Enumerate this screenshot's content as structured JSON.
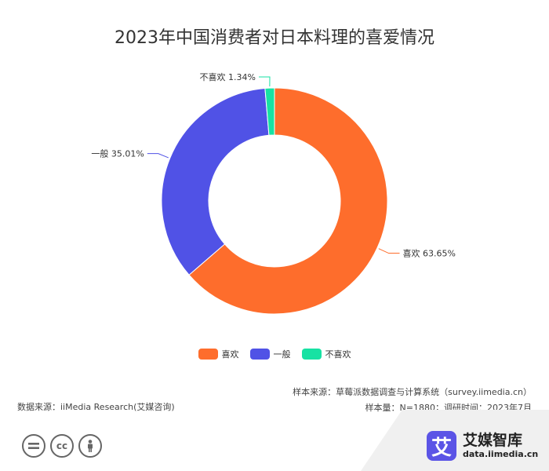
{
  "chart_data": {
    "type": "pie",
    "title": "2023年中国消费者对日本料理的喜爱情况",
    "donut": true,
    "categories": [
      "喜欢",
      "一般",
      "不喜欢"
    ],
    "values": [
      63.65,
      35.01,
      1.34
    ],
    "unit": "%",
    "colors": [
      "#fe6d2c",
      "#5052e6",
      "#17e2a3"
    ],
    "data_labels": [
      "喜欢 63.65%",
      "一般 35.01%",
      "不喜欢 1.34%"
    ],
    "legend": {
      "position": "bottom",
      "items": [
        "喜欢",
        "一般",
        "不喜欢"
      ]
    }
  },
  "footer": {
    "source": "数据来源：iiMedia Research(艾媒咨询)",
    "sample_source": "样本来源：草莓派数据调查与计算系统（survey.iimedia.cn）",
    "sample_info": "样本量：N=1880；调研时间：2023年7月"
  },
  "brand": {
    "logo_char": "艾",
    "name": "艾媒智库",
    "url": "data.iimedia.cn"
  },
  "license": {
    "icons": [
      "equals-icon",
      "cc-icon",
      "person-icon"
    ],
    "cc_text": "cc"
  }
}
